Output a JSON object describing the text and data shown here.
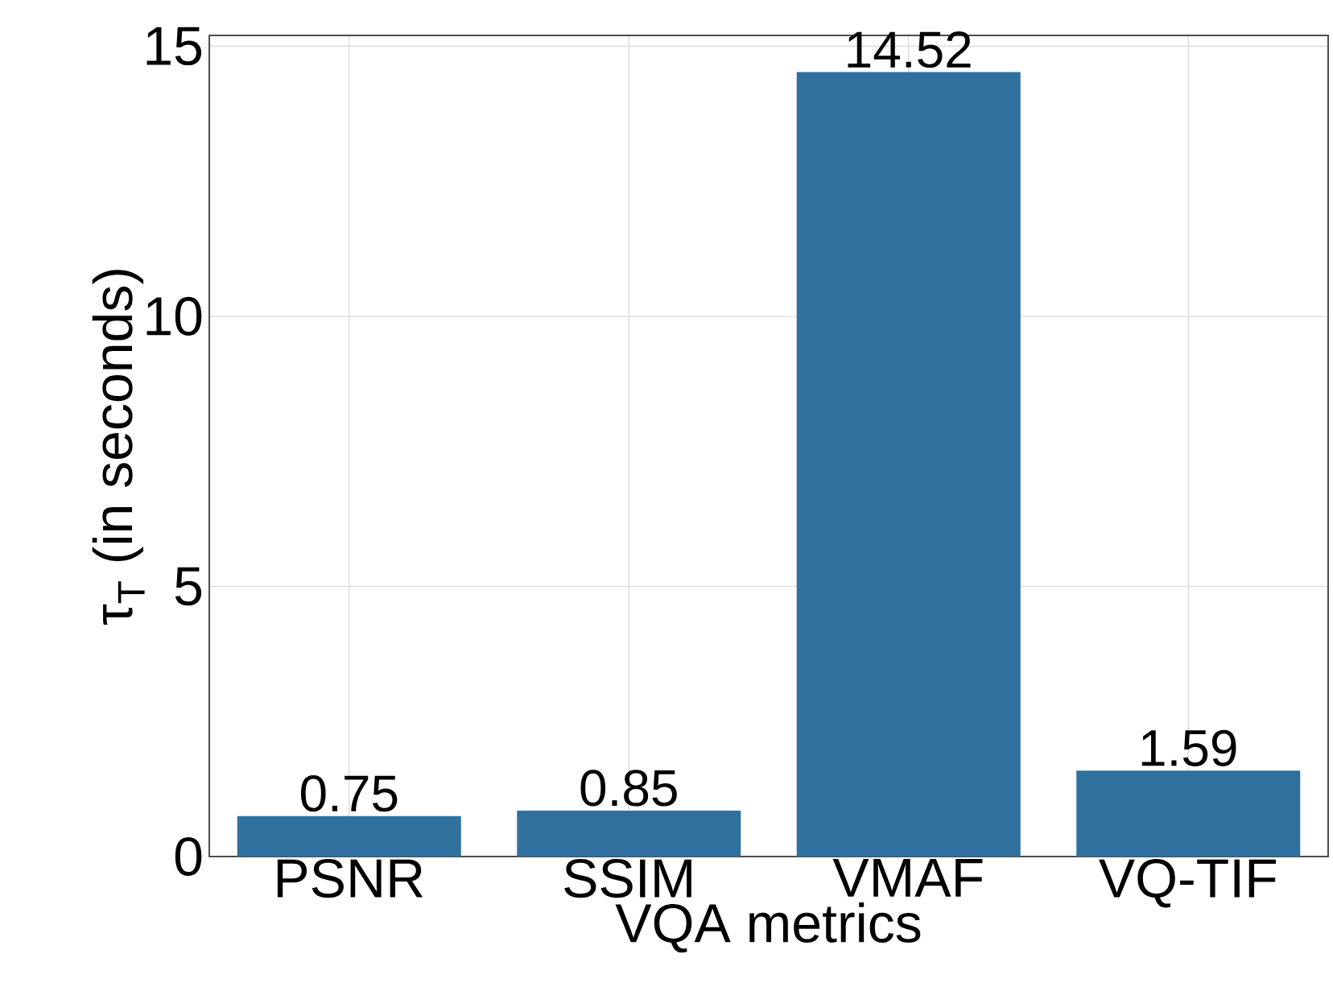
{
  "chart_data": {
    "type": "bar",
    "xlabel": "VQA metrics",
    "ylabel": "τ$_{T}$ (in seconds)",
    "categories": [
      "PSNR",
      "SSIM",
      "VMAF",
      "VQ-TIF"
    ],
    "values": [
      0.75,
      0.85,
      14.52,
      1.59
    ],
    "color": "#30709f",
    "ylim": [
      0,
      15.2
    ],
    "yticks": [
      0,
      5,
      10,
      15
    ],
    "grid": true,
    "data_labels": true
  }
}
